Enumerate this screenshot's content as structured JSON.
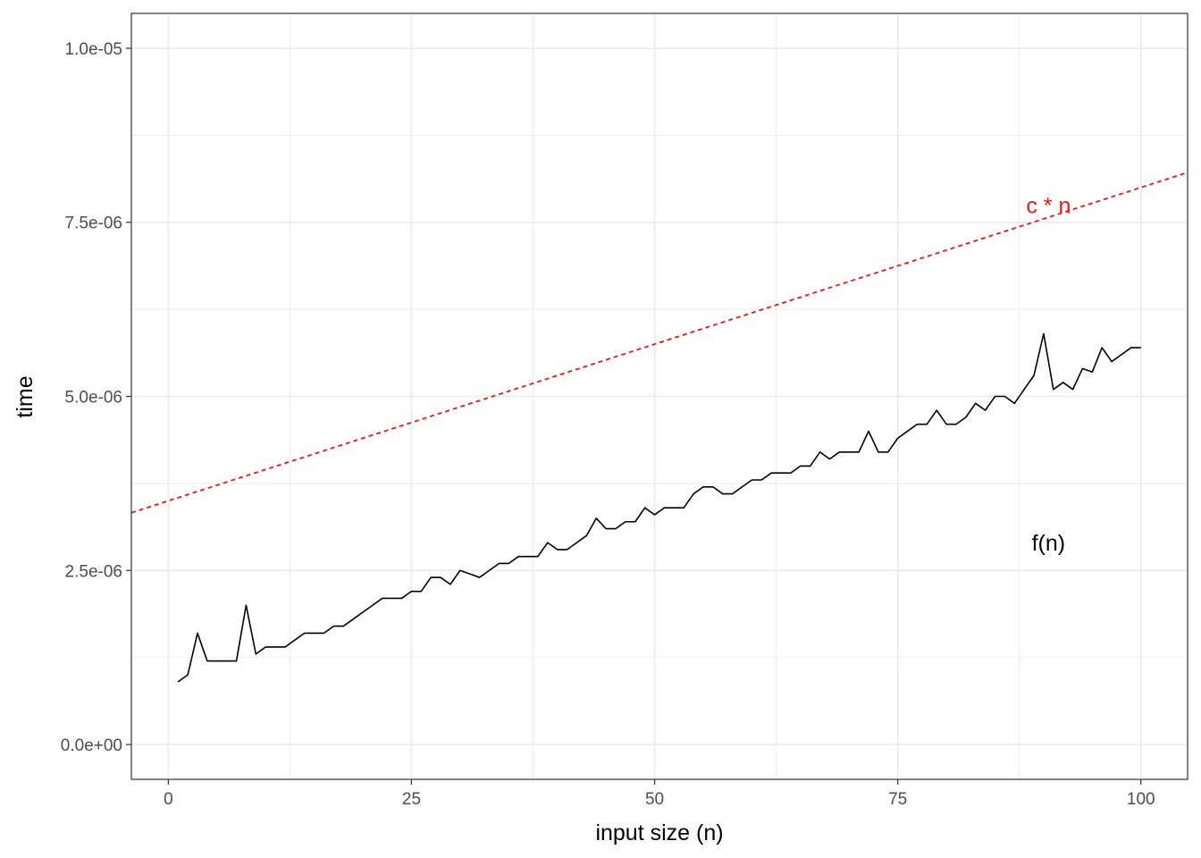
{
  "chart_data": {
    "type": "line",
    "title": "",
    "xlabel": "input size (n)",
    "ylabel": "time",
    "xlim": [
      -3.8,
      104.8
    ],
    "ylim": [
      -5e-07,
      1.05e-05
    ],
    "x_ticks": [
      0,
      25,
      50,
      75,
      100
    ],
    "x_tick_labels": [
      "0",
      "25",
      "50",
      "75",
      "100"
    ],
    "y_ticks": [
      0,
      2.5e-06,
      5e-06,
      7.5e-06,
      1e-05
    ],
    "y_tick_labels": [
      "0.0e+00",
      "2.5e-06",
      "5.0e-06",
      "7.5e-06",
      "1.0e-05"
    ],
    "grid": true,
    "colors": {
      "reference": "#e41a1c",
      "measured": "#000000",
      "grid": "#ebebeb"
    },
    "series": [
      {
        "line": "solid",
        "x": [
          1,
          2,
          3,
          4,
          5,
          6,
          7,
          8,
          9,
          10,
          11,
          12,
          13,
          14,
          15,
          16,
          17,
          18,
          19,
          20,
          21,
          22,
          23,
          24,
          25,
          26,
          27,
          28,
          29,
          30,
          31,
          32,
          33,
          34,
          35,
          36,
          37,
          38,
          39,
          40,
          41,
          42,
          43,
          44,
          45,
          46,
          47,
          48,
          49,
          50,
          51,
          52,
          53,
          54,
          55,
          56,
          57,
          58,
          59,
          60,
          61,
          62,
          63,
          64,
          65,
          66,
          67,
          68,
          69,
          70,
          71,
          72,
          73,
          74,
          75,
          76,
          77,
          78,
          79,
          80,
          81,
          82,
          83,
          84,
          85,
          86,
          87,
          88,
          89,
          90,
          91,
          92,
          93,
          94,
          95,
          96,
          97,
          98,
          99,
          100
        ],
        "y": [
          9e-07,
          1e-06,
          1.6e-06,
          1.2e-06,
          1.2e-06,
          1.2e-06,
          1.2e-06,
          2e-06,
          1.3e-06,
          1.4e-06,
          1.4e-06,
          1.4e-06,
          1.5e-06,
          1.6e-06,
          1.6e-06,
          1.6e-06,
          1.7e-06,
          1.7e-06,
          1.8e-06,
          1.9e-06,
          2e-06,
          2.1e-06,
          2.1e-06,
          2.1e-06,
          2.2e-06,
          2.2e-06,
          2.4e-06,
          2.4e-06,
          2.3e-06,
          2.5e-06,
          2.45e-06,
          2.4e-06,
          2.5e-06,
          2.6e-06,
          2.6e-06,
          2.7e-06,
          2.7e-06,
          2.7e-06,
          2.9e-06,
          2.8e-06,
          2.8e-06,
          2.9e-06,
          3e-06,
          3.25e-06,
          3.1e-06,
          3.1e-06,
          3.2e-06,
          3.2e-06,
          3.4e-06,
          3.3e-06,
          3.4e-06,
          3.4e-06,
          3.4e-06,
          3.6e-06,
          3.7e-06,
          3.7e-06,
          3.6e-06,
          3.6e-06,
          3.7e-06,
          3.8e-06,
          3.8e-06,
          3.9e-06,
          3.9e-06,
          3.9e-06,
          4e-06,
          4e-06,
          4.2e-06,
          4.1e-06,
          4.2e-06,
          4.2e-06,
          4.2e-06,
          4.5e-06,
          4.2e-06,
          4.2e-06,
          4.4e-06,
          4.5e-06,
          4.6e-06,
          4.6e-06,
          4.8e-06,
          4.6e-06,
          4.6e-06,
          4.7e-06,
          4.9e-06,
          4.8e-06,
          5e-06,
          5e-06,
          4.9e-06,
          5.1e-06,
          5.3e-06,
          5.9e-06,
          5.1e-06,
          5.2e-06,
          5.1e-06,
          5.4e-06,
          5.35e-06,
          5.7e-06,
          5.5e-06,
          5.6e-06,
          5.7e-06,
          5.7e-06
        ]
      },
      {
        "line": "dashed",
        "intercept": 3.5e-06,
        "slope": 4.5e-08
      }
    ],
    "annotations": [
      {
        "text": "c * n",
        "x": 90.5,
        "y": 7.75e-06,
        "color": "#e41a1c"
      },
      {
        "text": "f(n)",
        "x": 90.5,
        "y": 2.9e-06,
        "color": "#000000"
      }
    ]
  }
}
